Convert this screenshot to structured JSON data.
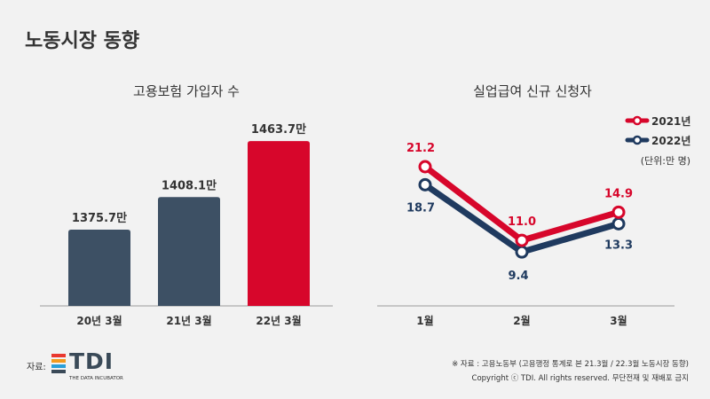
{
  "page": {
    "title": "노동시장 동향"
  },
  "colors": {
    "red": "#d7062b",
    "navy": "#3d5064",
    "line_navy": "#1f3a5f",
    "axis": "#999999"
  },
  "chart_data": [
    {
      "type": "bar",
      "title": "고용보험 가입자 수",
      "categories": [
        "20년 3월",
        "21년 3월",
        "22년 3월"
      ],
      "values": [
        1375.7,
        1408.1,
        1463.7
      ],
      "value_labels": [
        "1375.7만",
        "1408.1만",
        "1463.7만"
      ],
      "highlight_index": 2,
      "ylim": [
        1300,
        1470
      ],
      "grid": false
    },
    {
      "type": "line",
      "title": "실업급여 신규 신청자",
      "categories": [
        "1월",
        "2월",
        "3월"
      ],
      "series": [
        {
          "name": "2021년",
          "values": [
            21.2,
            11.0,
            14.9
          ],
          "labels": [
            "21.2",
            "11.0",
            "14.9"
          ]
        },
        {
          "name": "2022년",
          "values": [
            18.7,
            9.4,
            13.3
          ],
          "labels": [
            "18.7",
            "9.4",
            "13.3"
          ]
        }
      ],
      "unit_note": "(단위:만 명)",
      "legend": "top-right",
      "grid": false
    }
  ],
  "footer": {
    "source": "※ 자료 : 고용노동부 (고용행정 통계로 본 21.3월 / 22.3월 노동시장 동향)",
    "copyright": "Copyright ⓒ TDI. All rights reserved. 무단전재 및 재배포 금지",
    "logo_label": "자료:",
    "logo_text": "TDI",
    "logo_sub": "THE DATA INCUBATOR"
  }
}
